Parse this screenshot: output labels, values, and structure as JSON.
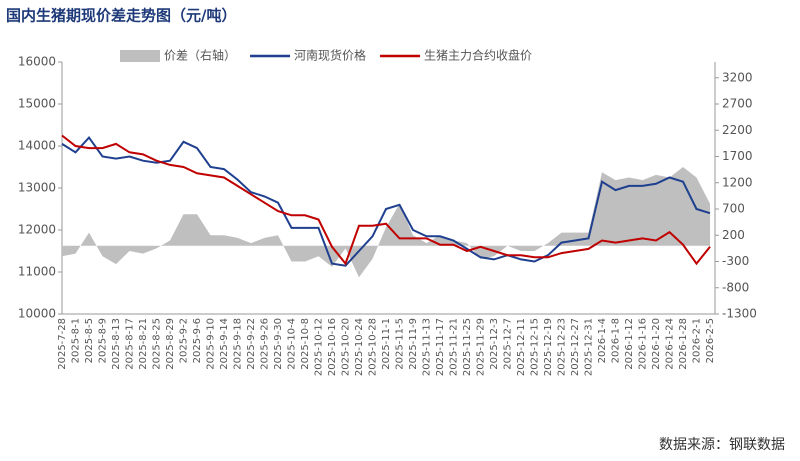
{
  "chart_data": {
    "type": "combo",
    "title": "国内生猪期现价差走势图（元/吨）",
    "source": "数据来源：钢联数据",
    "categories": [
      "2025-7-28",
      "2025-8-1",
      "2025-8-5",
      "2025-8-9",
      "2025-8-13",
      "2025-8-17",
      "2025-8-21",
      "2025-8-25",
      "2025-8-29",
      "2025-9-2",
      "2025-9-6",
      "2025-9-10",
      "2025-9-14",
      "2025-9-18",
      "2025-9-22",
      "2025-9-26",
      "2025-9-30",
      "2025-10-4",
      "2025-10-8",
      "2025-10-12",
      "2025-10-16",
      "2025-10-20",
      "2025-10-24",
      "2025-10-28",
      "2025-11-1",
      "2025-11-5",
      "2025-11-9",
      "2025-11-13",
      "2025-11-17",
      "2025-11-21",
      "2025-11-25",
      "2025-11-29",
      "2025-12-3",
      "2025-12-7",
      "2025-12-11",
      "2025-12-15",
      "2025-12-19",
      "2025-12-23",
      "2025-12-27",
      "2025-12-31",
      "2026-1-4",
      "2026-1-8",
      "2026-1-12",
      "2026-1-16",
      "2026-1-20",
      "2026-1-24",
      "2026-1-28",
      "2026-2-1",
      "2026-2-5"
    ],
    "series": [
      {
        "name": "价差（右轴）",
        "type": "area",
        "axis": "y2",
        "color": "#bfbfbf",
        "values": [
          -200,
          -150,
          250,
          -200,
          -350,
          -100,
          -150,
          -50,
          100,
          600,
          600,
          200,
          200,
          150,
          50,
          150,
          200,
          -300,
          -300,
          -200,
          -400,
          -50,
          -600,
          -250,
          350,
          800,
          200,
          50,
          200,
          100,
          50,
          -250,
          -200,
          0,
          -100,
          -100,
          50,
          250,
          250,
          250,
          1400,
          1250,
          1300,
          1250,
          1350,
          1300,
          1500,
          1300,
          800
        ]
      },
      {
        "name": "河南现货价格",
        "type": "line",
        "color": "#1f3f8f",
        "values": [
          14050,
          13850,
          14200,
          13750,
          13700,
          13750,
          13650,
          13600,
          13650,
          14100,
          13950,
          13500,
          13450,
          13200,
          12900,
          12800,
          12650,
          12050,
          12050,
          12050,
          11200,
          11150,
          11500,
          11850,
          12500,
          12600,
          12000,
          11850,
          11850,
          11750,
          11550,
          11350,
          11300,
          11400,
          11300,
          11250,
          11400,
          11700,
          11750,
          11800,
          13150,
          12950,
          13050,
          13050,
          13100,
          13250,
          13150,
          12500,
          12400
        ]
      },
      {
        "name": "生猪主力合约收盘价",
        "type": "line",
        "color": "#c00000",
        "values": [
          14250,
          14000,
          13950,
          13950,
          14050,
          13850,
          13800,
          13650,
          13550,
          13500,
          13350,
          13300,
          13250,
          13050,
          12850,
          12650,
          12450,
          12350,
          12350,
          12250,
          11600,
          11200,
          12100,
          12100,
          12150,
          11800,
          11800,
          11800,
          11650,
          11650,
          11500,
          11600,
          11500,
          11400,
          11400,
          11350,
          11350,
          11450,
          11500,
          11550,
          11750,
          11700,
          11750,
          11800,
          11750,
          11950,
          11650,
          11200,
          11600
        ]
      }
    ],
    "ylim": [
      10000,
      16000
    ],
    "yticks": [
      10000,
      11000,
      12000,
      13000,
      14000,
      15000,
      16000
    ],
    "y2lim": [
      -1300,
      3500
    ],
    "y2ticks": [
      -1300,
      -800,
      -300,
      200,
      700,
      1200,
      1700,
      2200,
      2700,
      3200
    ],
    "grid": false
  }
}
